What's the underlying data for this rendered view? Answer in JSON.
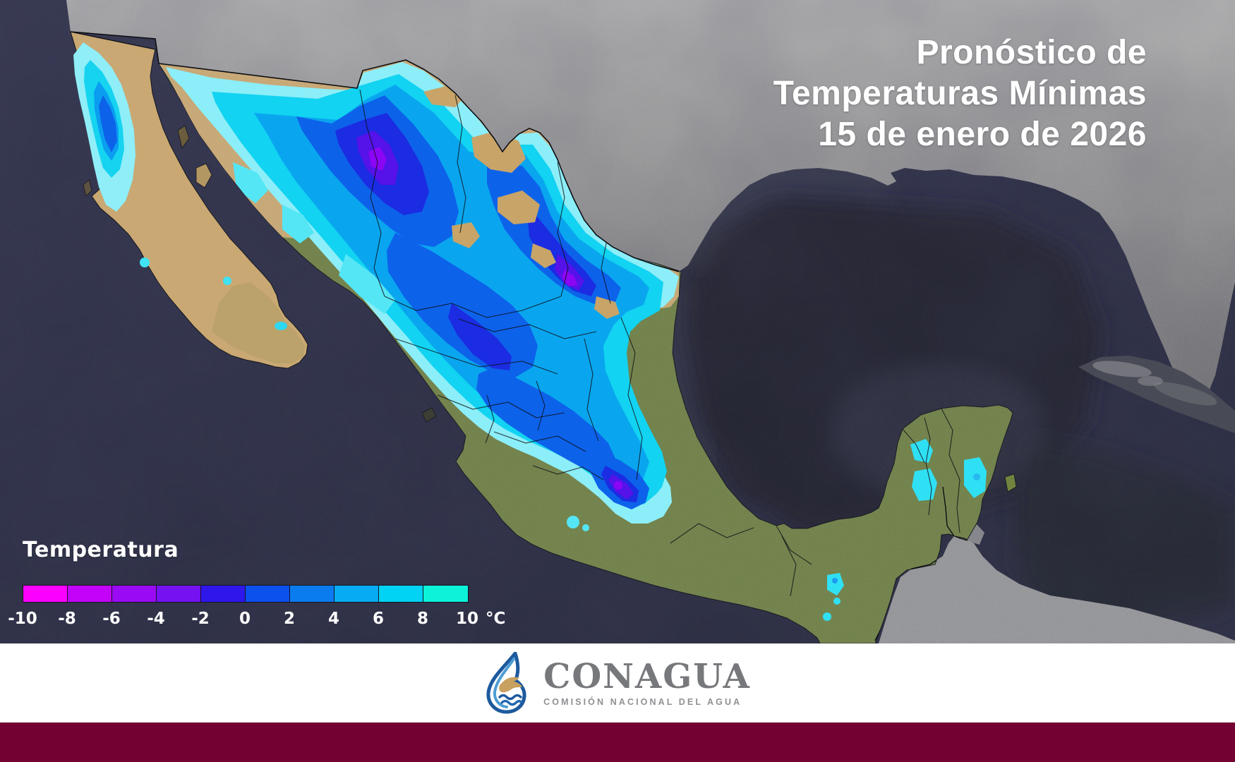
{
  "title": {
    "line1": "Pronóstico de",
    "line2": "Temperaturas Mínimas",
    "line3": "15 de enero de 2026"
  },
  "legend": {
    "label": "Temperatura",
    "unit": "°C",
    "ticks": [
      "-10",
      "-8",
      "-6",
      "-4",
      "-2",
      "0",
      "2",
      "4",
      "6",
      "8",
      "10"
    ],
    "colors": [
      "#fb00fe",
      "#c303f9",
      "#9b0af5",
      "#7412f1",
      "#2f17ec",
      "#0c50ee",
      "#0b7bf0",
      "#06abf3",
      "#01d3f4",
      "#0cf3da"
    ]
  },
  "footer": {
    "org": "CONAGUA",
    "tagline": "COMISIÓN NACIONAL DEL AGUA"
  },
  "colors": {
    "footer_bar": "#730233",
    "brand_text": "#77787b",
    "brand_tagline": "#8e9093",
    "logo_blue": "#2268ae",
    "logo_eagle_tan": "#c8a05f",
    "ocean": "#2d2f45",
    "gulf_deep": "#23242d",
    "us_land_gray": "#9a9a9a",
    "mexico_vegetation_green": "#6e7f45",
    "desert_tan": "#c9a873"
  }
}
